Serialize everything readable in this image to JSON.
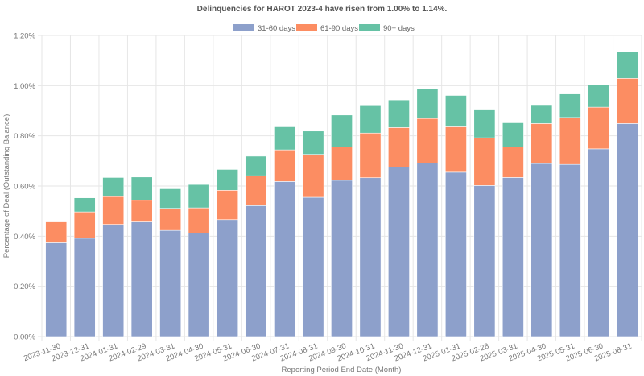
{
  "chart_data": {
    "type": "bar",
    "stacked": true,
    "title": "Delinquencies for HAROT 2023-4 have risen from 1.00% to 1.14%.",
    "xlabel": "Reporting Period End Date (Month)",
    "ylabel": "Percentage of Deal (Outstanding Balance)",
    "ylim": [
      0,
      1.2
    ],
    "yticks": [
      "0.00%",
      "0.20%",
      "0.40%",
      "0.60%",
      "0.80%",
      "1.00%",
      "1.20%"
    ],
    "ytick_values": [
      0,
      0.2,
      0.4,
      0.6,
      0.8,
      1.0,
      1.2
    ],
    "grid": true,
    "legend_position": "top-center",
    "categories": [
      "2023-11-30",
      "2023-12-31",
      "2024-01-31",
      "2024-02-29",
      "2024-03-31",
      "2024-04-30",
      "2024-05-31",
      "2024-06-30",
      "2024-07-31",
      "2024-08-31",
      "2024-09-30",
      "2024-10-31",
      "2024-11-30",
      "2024-12-31",
      "2025-01-31",
      "2025-02-28",
      "2025-03-31",
      "2025-04-30",
      "2025-05-31",
      "2025-06-30",
      "2025-08-31"
    ],
    "series": [
      {
        "name": "31-60 days",
        "color": "#8da0cb",
        "values": [
          0.374,
          0.392,
          0.447,
          0.457,
          0.423,
          0.412,
          0.466,
          0.522,
          0.618,
          0.555,
          0.623,
          0.633,
          0.676,
          0.692,
          0.655,
          0.602,
          0.634,
          0.69,
          0.686,
          0.748,
          0.849
        ]
      },
      {
        "name": "61-90 days",
        "color": "#fc8d62",
        "values": [
          0.083,
          0.105,
          0.111,
          0.086,
          0.088,
          0.101,
          0.117,
          0.119,
          0.126,
          0.171,
          0.132,
          0.178,
          0.157,
          0.177,
          0.181,
          0.19,
          0.122,
          0.159,
          0.187,
          0.166,
          0.18
        ]
      },
      {
        "name": "90+ days",
        "color": "#66c2a5",
        "values": [
          0.0,
          0.056,
          0.076,
          0.093,
          0.078,
          0.093,
          0.083,
          0.078,
          0.092,
          0.093,
          0.128,
          0.109,
          0.11,
          0.118,
          0.125,
          0.111,
          0.096,
          0.072,
          0.094,
          0.09,
          0.106
        ]
      }
    ]
  }
}
